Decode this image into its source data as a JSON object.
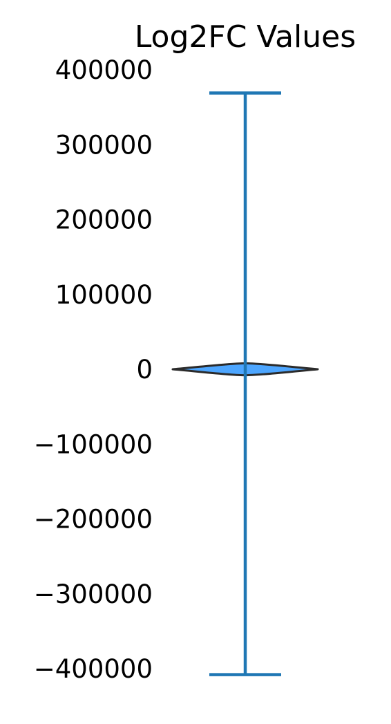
{
  "chart_data": {
    "type": "violin",
    "title": "Log2FC Values",
    "xlabel": "",
    "ylabel": "",
    "ylim": [
      -420000,
      420000
    ],
    "yticks": [
      400000,
      300000,
      200000,
      100000,
      0,
      -100000,
      -200000,
      -300000,
      -400000
    ],
    "ytick_labels": [
      "400000",
      "300000",
      "200000",
      "100000",
      "0",
      "−100000",
      "−200000",
      "−300000",
      "−400000"
    ],
    "series": [
      {
        "min": -408000,
        "max": 369000,
        "density_center": 0,
        "density_halfspan": 8000,
        "fill_color": "#4da6ff",
        "edge_color": "#2b2b2b",
        "whisker_color": "#1f77b4"
      }
    ],
    "grid": false,
    "axis_spines": false
  }
}
